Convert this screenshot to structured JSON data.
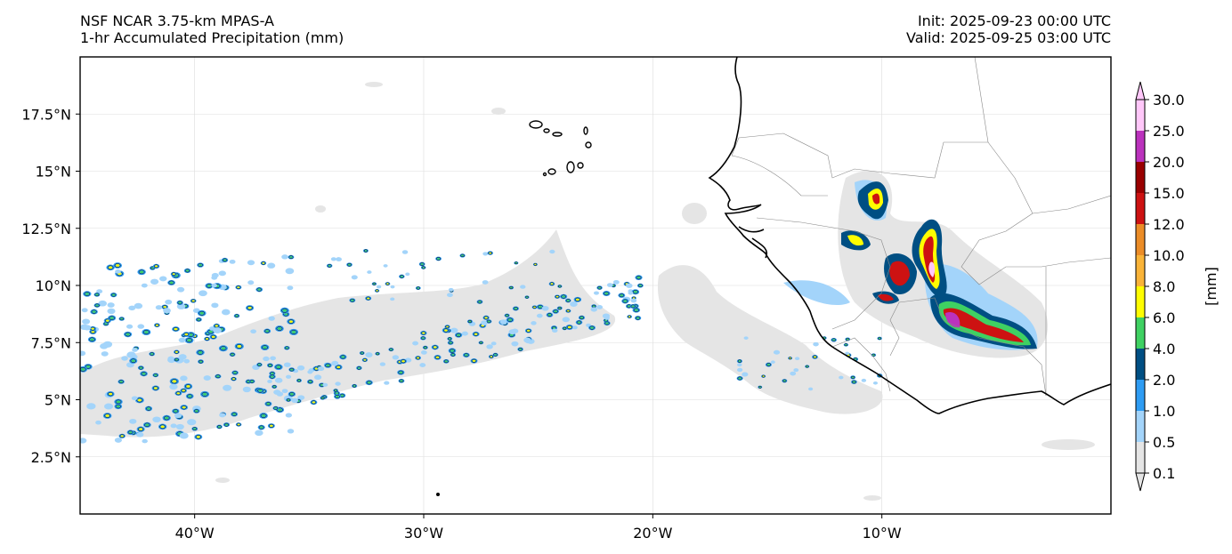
{
  "header": {
    "model_title": "NSF NCAR 3.75-km MPAS-A",
    "field_title": "1-hr Accumulated Precipitation (mm)",
    "init": "Init: 2025-09-23 00:00 UTC",
    "valid": "Valid: 2025-09-25 03:00 UTC"
  },
  "map": {
    "lon_range": [
      -45,
      0
    ],
    "lat_range": [
      0,
      20
    ],
    "x_ticks": [
      {
        "lon": -40,
        "label": "40°W"
      },
      {
        "lon": -30,
        "label": "30°W"
      },
      {
        "lon": -20,
        "label": "20°W"
      },
      {
        "lon": -10,
        "label": "10°W"
      }
    ],
    "y_ticks": [
      {
        "lat": 2.5,
        "label": "2.5°N"
      },
      {
        "lat": 5,
        "label": "5°N"
      },
      {
        "lat": 7.5,
        "label": "7.5°N"
      },
      {
        "lat": 10,
        "label": "10°N"
      },
      {
        "lat": 12.5,
        "label": "12.5°N"
      },
      {
        "lat": 15,
        "label": "15°N"
      },
      {
        "lat": 17.5,
        "label": "17.5°N"
      }
    ],
    "gridlines": true,
    "coastline_color": "#000000",
    "border_color": "#888888"
  },
  "colorbar": {
    "unit_label": "[mm]",
    "levels": [
      "0.1",
      "0.5",
      "1.0",
      "2.0",
      "4.0",
      "6.0",
      "8.0",
      "10.0",
      "12.0",
      "15.0",
      "20.0",
      "25.0",
      "30.0"
    ],
    "colors": [
      "#e5e5e5",
      "#a3d4fa",
      "#2e9cf3",
      "#004f83",
      "#3fd162",
      "#fffd00",
      "#f9b338",
      "#eb8c27",
      "#cd1212",
      "#9a0000",
      "#bb32bd",
      "#ffc7f9"
    ],
    "extend": "both"
  }
}
